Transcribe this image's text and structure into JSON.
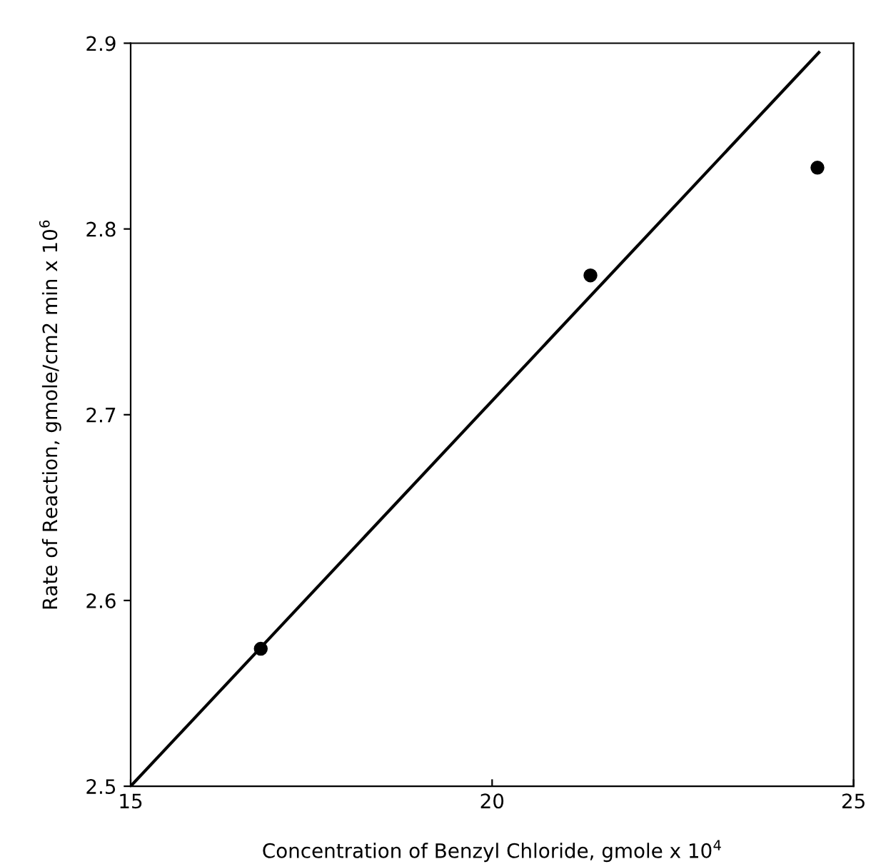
{
  "chart_data": {
    "type": "scatter",
    "xlabel": "Concentration of Benzyl Chloride, gmole x 10$^{4}$",
    "ylabel": "Rate of Reaction, gmole/cm2 min x 10$^{6}$",
    "series": [
      {
        "color": "#000000",
        "marker": "circle",
        "x": [
          16.8,
          21.36,
          24.5
        ],
        "values": [
          2.574,
          2.775,
          2.833
        ]
      },
      {
        "type": "line",
        "color": "#000000",
        "line_style": "solid",
        "x": [
          15,
          24.52
        ],
        "values": [
          2.5,
          2.895
        ]
      }
    ],
    "xlim": [
      15,
      25
    ],
    "xticks": [
      15,
      20,
      25
    ],
    "ylim": [
      2.5,
      2.9
    ],
    "yticks": [
      2.5,
      2.6,
      2.7,
      2.8,
      2.9
    ],
    "grid": false,
    "legend": false
  }
}
